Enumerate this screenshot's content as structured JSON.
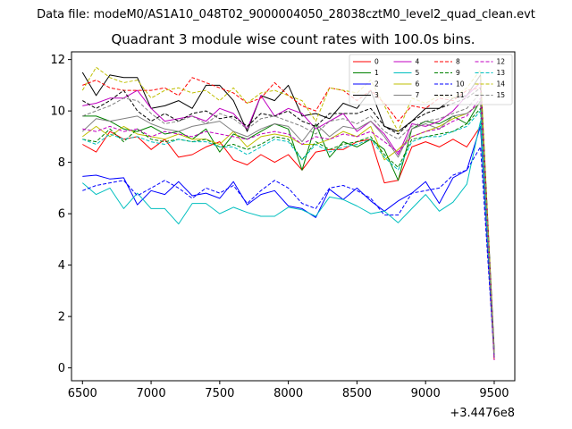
{
  "figure": {
    "suptitle": "Data file: modeM0/AS1A10_048T02_9000004050_28038cztM0_level2_quad_clean.evt"
  },
  "chart_data": {
    "type": "line",
    "title": "Quadrant 3 module wise count rates with 100.0s bins.",
    "xlabel": "",
    "ylabel": "",
    "x_offset_label": "+3.4476e8",
    "xlim": [
      6420,
      9650
    ],
    "ylim": [
      -0.5,
      12.3
    ],
    "xticks": [
      6500,
      7000,
      7500,
      8000,
      8500,
      9000,
      9500
    ],
    "xtick_labels": [
      "6500",
      "7000",
      "7500",
      "8000",
      "8500",
      "9000",
      "9500"
    ],
    "yticks": [
      0,
      2,
      4,
      6,
      8,
      10,
      12
    ],
    "ytick_labels": [
      "0",
      "2",
      "4",
      "6",
      "8",
      "10",
      "12"
    ],
    "legend_location": "top-right",
    "grid": false,
    "x": [
      6500,
      6600,
      6700,
      6800,
      6900,
      7000,
      7100,
      7200,
      7300,
      7400,
      7500,
      7600,
      7700,
      7800,
      7900,
      8000,
      8100,
      8200,
      8300,
      8400,
      8500,
      8600,
      8700,
      8800,
      8900,
      9000,
      9100,
      9200,
      9300,
      9400,
      9500
    ],
    "series": [
      {
        "name": "0",
        "color": "#ff0000",
        "dash": "solid",
        "values": [
          8.7,
          8.4,
          9.2,
          8.9,
          9.0,
          8.5,
          8.9,
          8.2,
          8.3,
          8.6,
          8.8,
          8.1,
          7.9,
          8.3,
          8.0,
          8.3,
          7.7,
          8.4,
          8.5,
          8.5,
          8.8,
          8.9,
          7.2,
          7.3,
          8.6,
          8.8,
          8.6,
          8.9,
          8.6,
          9.4,
          0.3
        ]
      },
      {
        "name": "1",
        "color": "#008000",
        "dash": "solid",
        "values": [
          9.8,
          9.8,
          9.6,
          9.3,
          9.2,
          9.4,
          9.1,
          9.2,
          8.9,
          9.3,
          8.4,
          9.1,
          8.9,
          9.2,
          9.5,
          9.3,
          7.7,
          9.5,
          8.2,
          8.8,
          8.6,
          8.9,
          8.5,
          7.3,
          9.3,
          9.6,
          9.5,
          9.8,
          9.5,
          10.4,
          0.4
        ]
      },
      {
        "name": "2",
        "color": "#0000ff",
        "dash": "solid",
        "values": [
          7.45,
          7.5,
          7.35,
          7.4,
          6.35,
          6.9,
          6.75,
          7.25,
          6.7,
          6.8,
          6.6,
          7.25,
          6.35,
          6.75,
          6.9,
          6.3,
          6.2,
          5.85,
          6.95,
          6.55,
          7.0,
          6.5,
          6.1,
          6.5,
          6.8,
          7.25,
          6.4,
          7.4,
          7.7,
          9.4,
          0.5
        ]
      },
      {
        "name": "3",
        "color": "#000000",
        "dash": "solid",
        "values": [
          11.5,
          10.6,
          11.4,
          11.3,
          11.3,
          10.1,
          10.2,
          10.4,
          10.1,
          11.0,
          11.0,
          10.4,
          9.2,
          10.6,
          10.4,
          11.0,
          9.8,
          9.9,
          9.7,
          10.3,
          10.1,
          10.8,
          9.4,
          9.2,
          9.6,
          10.1,
          10.1,
          10.5,
          10.6,
          11.4,
          0.7
        ]
      },
      {
        "name": "4",
        "color": "#c000c0",
        "dash": "solid",
        "values": [
          10.2,
          10.3,
          10.5,
          10.5,
          10.8,
          10.1,
          9.6,
          9.7,
          9.8,
          9.6,
          10.1,
          9.9,
          9.3,
          10.6,
          9.8,
          10.1,
          9.9,
          9.3,
          9.6,
          9.9,
          9.2,
          9.6,
          9.1,
          8.3,
          9.5,
          9.4,
          9.6,
          10.0,
          10.6,
          11.1,
          0.5
        ]
      },
      {
        "name": "5",
        "color": "#00bfbf",
        "dash": "solid",
        "values": [
          7.2,
          6.75,
          7.0,
          6.2,
          6.8,
          6.2,
          6.2,
          5.6,
          6.4,
          6.4,
          6.0,
          6.25,
          6.05,
          5.9,
          5.9,
          6.25,
          6.15,
          5.9,
          6.65,
          6.55,
          6.3,
          6.0,
          6.1,
          5.65,
          6.2,
          6.75,
          6.1,
          6.45,
          7.15,
          9.6,
          0.6
        ]
      },
      {
        "name": "6",
        "color": "#bfbf00",
        "dash": "solid",
        "values": [
          9.0,
          9.4,
          9.0,
          9.4,
          9.1,
          9.0,
          8.9,
          9.1,
          8.9,
          8.9,
          8.7,
          9.2,
          8.6,
          9.0,
          9.1,
          9.0,
          8.7,
          8.7,
          8.9,
          9.2,
          9.0,
          9.4,
          8.1,
          8.5,
          9.0,
          9.2,
          9.4,
          9.7,
          9.9,
          10.3,
          0.5
        ]
      },
      {
        "name": "7",
        "color": "#808080",
        "dash": "solid",
        "values": [
          9.2,
          9.7,
          9.6,
          9.7,
          9.8,
          9.5,
          9.3,
          9.2,
          9.4,
          9.5,
          9.6,
          9.2,
          9.0,
          9.3,
          9.5,
          9.4,
          8.8,
          9.5,
          9.0,
          9.4,
          9.3,
          9.6,
          9.0,
          8.2,
          9.3,
          9.5,
          9.3,
          9.8,
          9.9,
          10.3,
          0.6
        ]
      },
      {
        "name": "8",
        "color": "#ff0000",
        "dash": "dashed",
        "values": [
          11.0,
          11.2,
          10.9,
          10.8,
          10.8,
          10.8,
          10.9,
          10.6,
          11.3,
          11.1,
          10.9,
          10.7,
          10.3,
          10.5,
          11.1,
          10.6,
          10.2,
          10.0,
          10.9,
          10.8,
          10.4,
          10.8,
          10.3,
          9.6,
          10.2,
          10.1,
          10.5,
          10.4,
          10.8,
          10.9,
          0.5
        ]
      },
      {
        "name": "9",
        "color": "#008000",
        "dash": "dashed",
        "values": [
          8.9,
          8.8,
          9.3,
          8.8,
          9.3,
          8.9,
          8.8,
          8.9,
          8.8,
          8.9,
          8.6,
          8.7,
          8.5,
          8.7,
          9.0,
          8.9,
          8.1,
          8.8,
          8.5,
          8.7,
          8.8,
          9.0,
          8.3,
          7.8,
          8.9,
          9.0,
          9.1,
          9.2,
          9.5,
          10.1,
          0.4
        ]
      },
      {
        "name": "10",
        "color": "#0000ff",
        "dash": "dashed",
        "values": [
          6.9,
          7.1,
          7.2,
          7.3,
          6.7,
          7.0,
          7.3,
          7.0,
          6.6,
          7.0,
          6.8,
          7.1,
          6.4,
          6.9,
          7.3,
          7.0,
          6.4,
          6.2,
          7.0,
          7.1,
          6.9,
          6.6,
          5.95,
          5.95,
          6.8,
          6.9,
          7.0,
          7.5,
          7.7,
          8.6,
          0.4
        ]
      },
      {
        "name": "11",
        "color": "#000000",
        "dash": "dashed",
        "values": [
          10.4,
          10.1,
          10.4,
          10.8,
          10.0,
          9.6,
          9.9,
          9.6,
          9.9,
          10.0,
          9.7,
          9.8,
          9.4,
          9.9,
          9.8,
          10.0,
          9.6,
          9.4,
          9.9,
          9.9,
          9.9,
          10.1,
          9.4,
          9.1,
          9.6,
          9.9,
          10.1,
          10.3,
          10.5,
          10.9,
          0.5
        ]
      },
      {
        "name": "12",
        "color": "#c000c0",
        "dash": "dashed",
        "values": [
          9.3,
          9.2,
          9.4,
          9.2,
          9.3,
          9.0,
          9.2,
          9.1,
          9.0,
          9.2,
          9.1,
          9.0,
          8.9,
          9.1,
          9.2,
          9.1,
          8.7,
          9.0,
          8.9,
          9.1,
          9.0,
          9.2,
          8.8,
          8.4,
          9.0,
          9.2,
          9.3,
          9.6,
          9.8,
          10.5,
          0.3
        ]
      },
      {
        "name": "13",
        "color": "#00bfbf",
        "dash": "dashed",
        "values": [
          8.9,
          8.7,
          9.1,
          8.9,
          9.0,
          8.8,
          8.7,
          8.9,
          8.8,
          8.8,
          8.6,
          8.6,
          8.3,
          8.6,
          8.9,
          8.8,
          8.1,
          8.7,
          8.4,
          8.6,
          8.7,
          8.9,
          8.2,
          7.7,
          8.8,
          9.0,
          9.0,
          9.2,
          9.4,
          10.0,
          0.5
        ]
      },
      {
        "name": "14",
        "color": "#bfbf00",
        "dash": "dashed",
        "values": [
          10.8,
          11.7,
          11.3,
          11.1,
          11.2,
          10.5,
          10.8,
          10.9,
          10.7,
          10.8,
          10.4,
          10.9,
          10.3,
          10.7,
          10.8,
          10.6,
          10.4,
          9.6,
          10.9,
          10.8,
          10.7,
          11.2,
          10.2,
          9.2,
          10.5,
          10.3,
          10.6,
          10.5,
          10.9,
          11.6,
          0.5
        ]
      },
      {
        "name": "15",
        "color": "#808080",
        "dash": "dashed",
        "values": [
          9.8,
          10.0,
          10.2,
          10.5,
          10.4,
          9.9,
          9.5,
          9.6,
          9.8,
          9.5,
          9.9,
          9.7,
          9.3,
          9.7,
          9.8,
          9.6,
          9.4,
          9.1,
          9.6,
          9.7,
          9.5,
          9.8,
          9.2,
          8.9,
          9.4,
          9.6,
          9.7,
          9.9,
          10.1,
          10.7,
          0.5
        ]
      }
    ]
  }
}
